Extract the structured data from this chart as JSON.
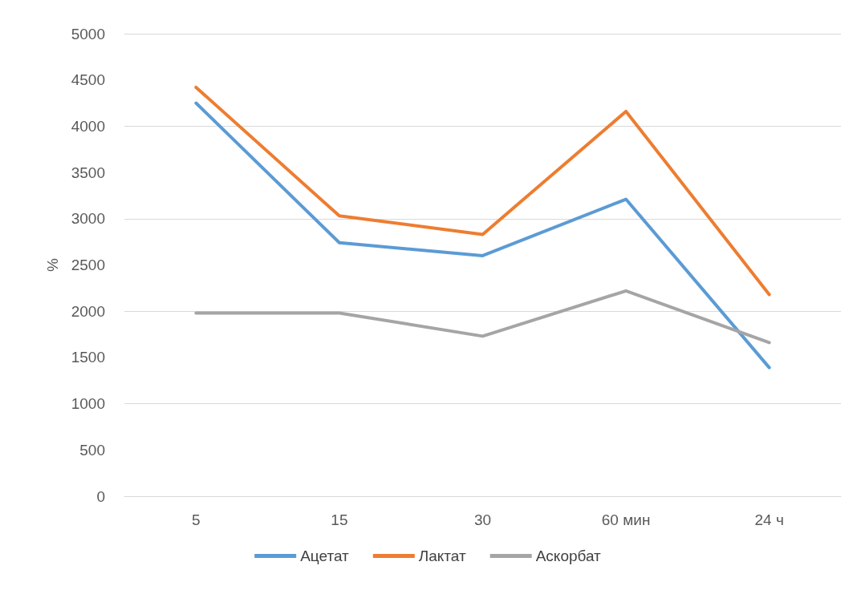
{
  "chart_data": {
    "type": "line",
    "ylabel": "%",
    "categories": [
      "5",
      "15",
      "30",
      "60 мин",
      "24 ч"
    ],
    "series": [
      {
        "name": "Ацетат",
        "color": "#5b9bd5",
        "values": [
          4250,
          2740,
          2600,
          3210,
          1390
        ]
      },
      {
        "name": "Лактат",
        "color": "#ed7d31",
        "values": [
          4420,
          3030,
          2830,
          4160,
          2180
        ]
      },
      {
        "name": "Аскорбат",
        "color": "#a5a5a5",
        "values": [
          1980,
          1980,
          1730,
          2220,
          1660
        ]
      }
    ],
    "ylim": [
      0,
      5000
    ],
    "yticks": [
      0,
      500,
      1000,
      1500,
      2000,
      2500,
      3000,
      3500,
      4000,
      4500,
      5000
    ],
    "grid": "y",
    "legend": "bottom",
    "marker": "none",
    "line_style": "solid"
  }
}
